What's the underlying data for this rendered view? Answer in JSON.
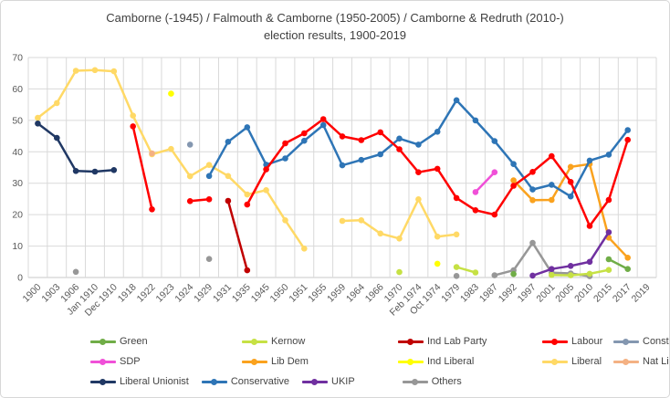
{
  "chart_data": {
    "type": "line",
    "title": "Camborne (-1945) / Falmouth & Camborne (1950-2005) / Camborne & Redruth (2010-)",
    "subtitle": "election results, 1900-2019",
    "grid": true,
    "legend_position": "bottom",
    "xlabel": "",
    "ylabel": "",
    "ylim": [
      0,
      70
    ],
    "y_ticks": [
      0,
      10,
      20,
      30,
      40,
      50,
      60,
      70
    ],
    "categories": [
      "1900",
      "1903",
      "1906",
      "Jan 1910",
      "Dec 1910",
      "1918",
      "1922",
      "1923",
      "1924",
      "1929",
      "1931",
      "1935",
      "1945",
      "1950",
      "1951",
      "1955",
      "1959",
      "1964",
      "1966",
      "1970",
      "Feb 1974",
      "Oct 1974",
      "1979",
      "1983",
      "1987",
      "1992",
      "1997",
      "2001",
      "2005",
      "2010",
      "2015",
      "2017",
      "2019"
    ],
    "series": [
      {
        "name": "Liberal",
        "color": "#FFD966",
        "points": {
          "1900": 50.8,
          "1903": 55.5,
          "1906": 65.8,
          "Jan 1910": 66.0,
          "Dec 1910": 65.6,
          "1918": 51.5,
          "1922": 39.2,
          "1923": 40.9,
          "1924": 32.2,
          "1929": 35.8,
          "1931": 32.3,
          "1935": 26.4,
          "1945": 27.8,
          "1950": 18.2,
          "1951": 9.2,
          "1959": 18.0,
          "1964": 18.2,
          "1966": 14.0,
          "1970": 12.4,
          "Feb 1974": 24.9,
          "Oct 1974": 13.0,
          "1979": 13.7
        }
      },
      {
        "name": "Nat Liberal",
        "color": "#F4B183",
        "points": {
          "1922": 39.5
        }
      },
      {
        "name": "Ind Liberal",
        "color": "#FFFF00",
        "points": {
          "1923": 58.5,
          "Oct 1974": 4.4
        }
      },
      {
        "name": "Constitution",
        "color": "#8497B0",
        "points": {
          "1924": 42.3
        }
      },
      {
        "name": "Liberal Unionist",
        "color": "#203864",
        "points": {
          "1900": 49.0,
          "1903": 44.4,
          "1906": 33.9,
          "Jan 1910": 33.7,
          "Dec 1910": 34.2
        }
      },
      {
        "name": "Others",
        "color": "#979797",
        "points": {
          "1906": 1.8,
          "1929": 5.9,
          "1979": 0.5,
          "1987": 0.7,
          "1992": 2.3,
          "1997": 11.0,
          "2001": 1.5,
          "2005": 1.3,
          "2010": 0.4
        }
      },
      {
        "name": "Kernow",
        "color": "#C6E144",
        "points": {
          "1970": 1.7,
          "1979": 3.3,
          "1983": 1.6,
          "2001": 0.8,
          "2005": 0.7,
          "2010": 1.2,
          "2015": 2.4
        }
      },
      {
        "name": "Green",
        "color": "#70AD47",
        "points": {
          "1992": 1.1,
          "2015": 5.8,
          "2017": 2.7
        }
      },
      {
        "name": "SDP",
        "color": "#F050D8",
        "points": {
          "1983": 27.2,
          "1987": 33.5
        }
      },
      {
        "name": "Lib Dem",
        "color": "#FAA21E",
        "points": {
          "1992": 30.9,
          "1997": 24.6,
          "2001": 24.7,
          "2005": 35.2,
          "2010": 36.1,
          "2015": 12.7,
          "2017": 6.3
        }
      },
      {
        "name": "Ind Lab Party",
        "color": "#C00000",
        "points": {
          "1931": 24.4,
          "1935": 2.3
        }
      },
      {
        "name": "UKIP",
        "color": "#7030A0",
        "points": {
          "1997": 0.6,
          "2001": 2.7,
          "2005": 3.7,
          "2010": 5.0,
          "2015": 14.4
        }
      },
      {
        "name": "Conservative",
        "color": "#2E75B6",
        "points": {
          "1929": 32.3,
          "1931": 43.2,
          "1935": 47.8,
          "1945": 35.9,
          "1950": 37.9,
          "1951": 43.5,
          "1955": 48.5,
          "1959": 35.7,
          "1964": 37.4,
          "1966": 39.2,
          "1970": 44.2,
          "Feb 1974": 42.3,
          "Oct 1974": 46.4,
          "1979": 56.4,
          "1983": 50.0,
          "1987": 43.4,
          "1992": 36.1,
          "1997": 28.0,
          "2001": 29.5,
          "2005": 25.8,
          "2010": 37.2,
          "2015": 39.1,
          "2017": 46.9
        }
      },
      {
        "name": "Labour",
        "color": "#FF0000",
        "points": {
          "1918": 48.1,
          "1922": 21.7,
          "1924": 24.3,
          "1929": 24.9,
          "1935": 23.2,
          "1945": 34.4,
          "1950": 42.7,
          "1951": 45.9,
          "1955": 50.4,
          "1959": 44.9,
          "1964": 43.7,
          "1966": 46.2,
          "1970": 40.8,
          "Feb 1974": 33.5,
          "Oct 1974": 34.6,
          "1979": 25.3,
          "1983": 21.4,
          "1987": 20.0,
          "1992": 29.2,
          "1997": 33.6,
          "2001": 38.6,
          "2005": 30.4,
          "2010": 16.4,
          "2015": 24.7,
          "2017": 43.8
        }
      }
    ],
    "legend_rows": [
      [
        "Green",
        "Kernow",
        "Ind Lab Party",
        "Labour",
        "Constitution"
      ],
      [
        "SDP",
        "Lib Dem",
        "Ind Liberal",
        "Liberal",
        "Nat Liberal"
      ],
      [
        "Liberal Unionist",
        "Conservative",
        "UKIP",
        "Others"
      ]
    ]
  }
}
